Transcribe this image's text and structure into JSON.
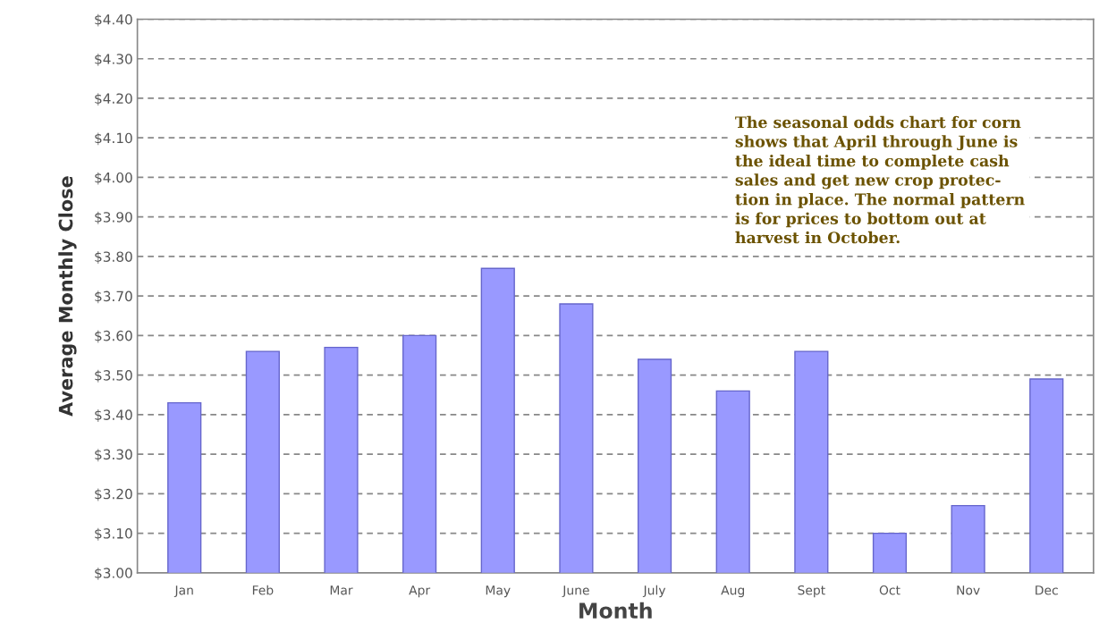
{
  "chart_data": {
    "type": "bar",
    "xlabel": "Month",
    "ylabel": "Average Monthly Close",
    "categories": [
      "Jan",
      "Feb",
      "Mar",
      "Apr",
      "May",
      "June",
      "July",
      "Aug",
      "Sept",
      "Oct",
      "Nov",
      "Dec"
    ],
    "values": [
      3.43,
      3.56,
      3.57,
      3.6,
      3.77,
      3.68,
      3.54,
      3.46,
      3.56,
      3.1,
      3.17,
      3.49
    ],
    "color": "#9999ff",
    "ylim": [
      3.0,
      4.4
    ],
    "yticks": [
      {
        "value": 3.0,
        "label": "$3.00"
      },
      {
        "value": 3.1,
        "label": "$3.10"
      },
      {
        "value": 3.2,
        "label": "$3.20"
      },
      {
        "value": 3.3,
        "label": "$3.30"
      },
      {
        "value": 3.4,
        "label": "$3.40"
      },
      {
        "value": 3.5,
        "label": "$3.50"
      },
      {
        "value": 3.6,
        "label": "$3.60"
      },
      {
        "value": 3.7,
        "label": "$3.70"
      },
      {
        "value": 3.8,
        "label": "$3.80"
      },
      {
        "value": 3.9,
        "label": "$3.90"
      },
      {
        "value": 4.0,
        "label": "$4.00"
      },
      {
        "value": 4.1,
        "label": "$4.10"
      },
      {
        "value": 4.2,
        "label": "$4.20"
      },
      {
        "value": 4.3,
        "label": "$4.30"
      },
      {
        "value": 4.4,
        "label": "$4.40"
      }
    ],
    "grid": "y",
    "annotations": [
      "The seasonal odds chart for corn\nshows that April through June is\nthe ideal time to complete cash\nsales and get new crop protec-\ntion in place. The normal pattern\nis for prices to bottom out at\nharvest in October."
    ]
  }
}
